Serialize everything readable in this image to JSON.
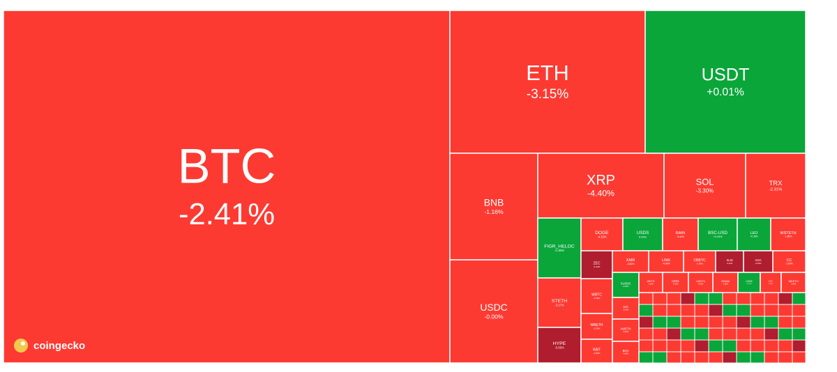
{
  "chart_data": {
    "type": "treemap",
    "brand": "coingecko",
    "categories": [
      "BTC",
      "ETH",
      "USDT",
      "BNB",
      "USDC",
      "XRP",
      "SOL",
      "TRX",
      "FIGR_HELOC",
      "DOGE",
      "USDS",
      "RAIN",
      "BSC-USD",
      "LEO",
      "WSTETH",
      "STETH",
      "HYPE",
      "ZEC",
      "XMR",
      "LINK",
      "CBBTC",
      "XLM",
      "ADA",
      "CC",
      "WBTC",
      "WBETH",
      "WBT",
      "SUSDS",
      "DAI",
      "AWETH",
      "BCH",
      "WETH",
      "USD1",
      "USDT0",
      "GRAM",
      "USDE",
      "LTC",
      "WEETH"
    ],
    "values": [
      -2.41,
      -3.15,
      0.01,
      -1.16,
      -0.0,
      -4.4,
      -3.3,
      -2.31,
      1.65,
      -4.33,
      0.0,
      -3.44,
      0.03,
      0.38,
      -1.85,
      -3.17,
      -5.55,
      -6.44,
      -3.82,
      -4.09,
      -3.39,
      -5.4,
      -6.2,
      -2.9,
      -2.36,
      -3.2,
      -2.8,
      0.02,
      -0.01,
      -3.1,
      -3.6,
      -3.2,
      -0.03,
      -0.02,
      -1.5,
      0.01,
      -2.9,
      -3.0
    ],
    "value_labels": [
      "-2.41%",
      "-3.15%",
      "+0.01%",
      "-1.16%",
      "-0.00%",
      "-4.40%",
      "-3.30%",
      "-2.31%",
      "+1.65%",
      "-4.33%",
      "0.00%",
      "-3.44%",
      "+0.03%",
      "+0.38%",
      "-1.85%",
      "-3.17%",
      "-5.55%",
      "-6.44%",
      "-3.82%",
      "-4.09%",
      "-3.39%",
      "-5.40%",
      "-6.20%",
      "-2.90%",
      "-2.36%",
      "-3.20%",
      "-2.80%",
      "+0.02%",
      "-0.01%",
      "-3.10%",
      "-3.60%",
      "-3.20%",
      "-0.03%",
      "-0.02%",
      "-1.50%",
      "+0.01%",
      "-2.90%",
      "-3.00%"
    ],
    "colors": {
      "down": "#fd3a32",
      "up": "#0aa63a",
      "deep": "#b01d2e"
    },
    "deep_below": -5
  }
}
